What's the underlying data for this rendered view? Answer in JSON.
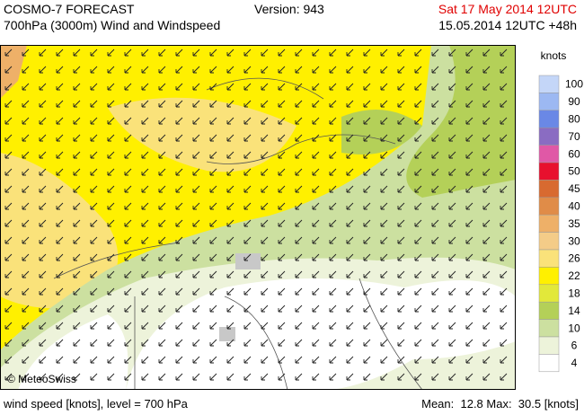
{
  "header": {
    "title": "COSMO-7 FORECAST",
    "subtitle": "700hPa (3000m) Wind and Windspeed",
    "version": "Version: 943",
    "valid_time": "Sat 17 May 2014 12UTC",
    "run_time": "15.05.2014 12UTC +48h"
  },
  "map": {
    "credit": "© MeteoSwiss"
  },
  "legend": {
    "title": "knots",
    "levels": [
      {
        "label": "100",
        "color": "#c4d6f8"
      },
      {
        "label": "90",
        "color": "#9cb8f2"
      },
      {
        "label": "80",
        "color": "#6a88e6"
      },
      {
        "label": "70",
        "color": "#8a6cc2"
      },
      {
        "label": "60",
        "color": "#e058a6"
      },
      {
        "label": "50",
        "color": "#e8102e"
      },
      {
        "label": "45",
        "color": "#d86a30"
      },
      {
        "label": "40",
        "color": "#e08c48"
      },
      {
        "label": "35",
        "color": "#eeb068"
      },
      {
        "label": "30",
        "color": "#f4cc88"
      },
      {
        "label": "26",
        "color": "#fae27a"
      },
      {
        "label": "22",
        "color": "#fff000"
      },
      {
        "label": "18",
        "color": "#e2e83a"
      },
      {
        "label": "14",
        "color": "#b4d058"
      },
      {
        "label": "10",
        "color": "#cce0a0"
      },
      {
        "label": "6",
        "color": "#edf3da"
      },
      {
        "label": "4",
        "color": "#ffffff"
      }
    ]
  },
  "footer": {
    "left": "wind speed [knots], level = 700 hPa",
    "right": "Mean:  12.8 Max:  30.5 [knots]"
  }
}
